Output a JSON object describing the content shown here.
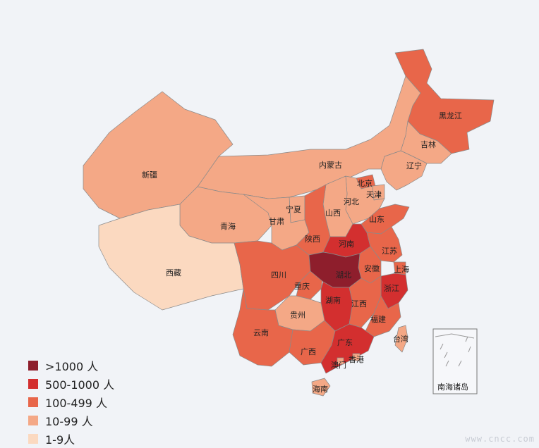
{
  "colors": {
    "level_gt1000": "#8e1e2c",
    "level_500_1000": "#d32f2f",
    "level_100_499": "#e8664a",
    "level_10_99": "#f4a886",
    "level_1_9": "#fbd9c0"
  },
  "legend": [
    {
      "label": ">1000 人",
      "color_key": "level_gt1000"
    },
    {
      "label": "500-1000 人",
      "color_key": "level_500_1000"
    },
    {
      "label": "100-499 人",
      "color_key": "level_100_499"
    },
    {
      "label": "10-99 人",
      "color_key": "level_10_99"
    },
    {
      "label": "1-9人",
      "color_key": "level_1_9"
    }
  ],
  "provinces": [
    {
      "name": "黑龙江",
      "level": "level_100_499"
    },
    {
      "name": "吉林",
      "level": "level_10_99"
    },
    {
      "name": "辽宁",
      "level": "level_10_99"
    },
    {
      "name": "内蒙古",
      "level": "level_10_99"
    },
    {
      "name": "北京",
      "level": "level_100_499"
    },
    {
      "name": "天津",
      "level": "level_10_99"
    },
    {
      "name": "河北",
      "level": "level_10_99"
    },
    {
      "name": "山西",
      "level": "level_10_99"
    },
    {
      "name": "山东",
      "level": "level_100_499"
    },
    {
      "name": "新疆",
      "level": "level_10_99"
    },
    {
      "name": "宁夏",
      "level": "level_10_99"
    },
    {
      "name": "青海",
      "level": "level_10_99"
    },
    {
      "name": "甘肃",
      "level": "level_10_99"
    },
    {
      "name": "陕西",
      "level": "level_100_499"
    },
    {
      "name": "河南",
      "level": "level_500_1000"
    },
    {
      "name": "江苏",
      "level": "level_100_499"
    },
    {
      "name": "安徽",
      "level": "level_100_499"
    },
    {
      "name": "上海",
      "level": "level_100_499"
    },
    {
      "name": "西藏",
      "level": "level_1_9"
    },
    {
      "name": "四川",
      "level": "level_100_499"
    },
    {
      "name": "重庆",
      "level": "level_100_499"
    },
    {
      "name": "湖北",
      "level": "level_gt1000"
    },
    {
      "name": "浙江",
      "level": "level_500_1000"
    },
    {
      "name": "湖南",
      "level": "level_500_1000"
    },
    {
      "name": "江西",
      "level": "level_100_499"
    },
    {
      "name": "贵州",
      "level": "level_10_99"
    },
    {
      "name": "福建",
      "level": "level_100_499"
    },
    {
      "name": "云南",
      "level": "level_100_499"
    },
    {
      "name": "台湾",
      "level": "level_10_99"
    },
    {
      "name": "广西",
      "level": "level_100_499"
    },
    {
      "name": "广东",
      "level": "level_500_1000"
    },
    {
      "name": "澳门",
      "level": "level_10_99"
    },
    {
      "name": "香港",
      "level": "level_10_99"
    },
    {
      "name": "海南",
      "level": "level_10_99"
    }
  ],
  "inset_label": "南海诸岛",
  "watermark": "www.cncc.com"
}
